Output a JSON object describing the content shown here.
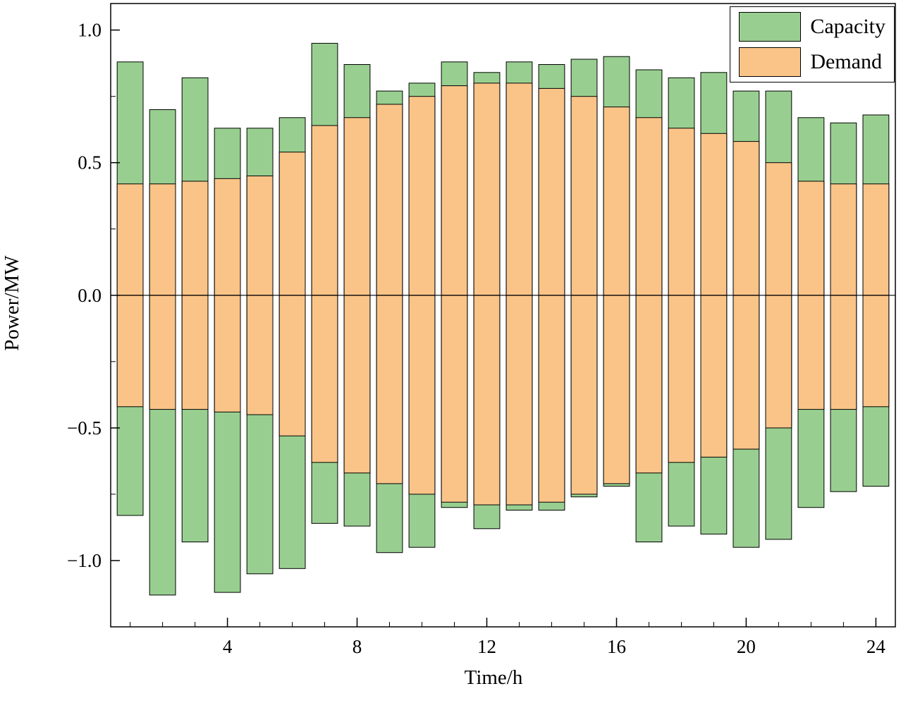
{
  "chart_data": {
    "type": "bar",
    "title": "",
    "xlabel": "Time/h",
    "ylabel": "Power/MW",
    "x": [
      1,
      2,
      3,
      4,
      5,
      6,
      7,
      8,
      9,
      10,
      11,
      12,
      13,
      14,
      15,
      16,
      17,
      18,
      19,
      20,
      21,
      22,
      23,
      24
    ],
    "series": [
      {
        "name": "Capacity",
        "color": "#98cf90",
        "positive": [
          0.88,
          0.7,
          0.82,
          0.63,
          0.63,
          0.67,
          0.95,
          0.87,
          0.77,
          0.8,
          0.88,
          0.84,
          0.88,
          0.87,
          0.89,
          0.9,
          0.85,
          0.82,
          0.84,
          0.77,
          0.77,
          0.67,
          0.65,
          0.68
        ],
        "negative": [
          -0.83,
          -1.13,
          -0.93,
          -1.12,
          -1.05,
          -1.03,
          -0.86,
          -0.87,
          -0.97,
          -0.95,
          -0.8,
          -0.88,
          -0.81,
          -0.81,
          -0.76,
          -0.72,
          -0.93,
          -0.87,
          -0.9,
          -0.95,
          -0.92,
          -0.8,
          -0.74,
          -0.72
        ]
      },
      {
        "name": "Demand",
        "color": "#fac488",
        "positive": [
          0.42,
          0.42,
          0.43,
          0.44,
          0.45,
          0.54,
          0.64,
          0.67,
          0.72,
          0.75,
          0.79,
          0.8,
          0.8,
          0.78,
          0.75,
          0.71,
          0.67,
          0.63,
          0.61,
          0.58,
          0.5,
          0.43,
          0.42,
          0.42
        ],
        "negative": [
          -0.42,
          -0.43,
          -0.43,
          -0.44,
          -0.45,
          -0.53,
          -0.63,
          -0.67,
          -0.71,
          -0.75,
          -0.78,
          -0.79,
          -0.79,
          -0.78,
          -0.75,
          -0.71,
          -0.67,
          -0.63,
          -0.61,
          -0.58,
          -0.5,
          -0.43,
          -0.43,
          -0.42
        ]
      }
    ],
    "xlim": [
      0.4,
      24.6
    ],
    "ylim": [
      -1.25,
      1.1
    ],
    "bar_width": 0.8,
    "xticks": [
      4,
      8,
      12,
      16,
      20,
      24
    ],
    "xtick_labels": [
      "4",
      "8",
      "12",
      "16",
      "20",
      "24"
    ],
    "yticks": [
      1.0,
      0.5,
      0.0,
      -0.5,
      -1.0
    ],
    "ytick_labels": [
      "1.0",
      "0.5",
      "0.0",
      "−0.5",
      "−1.0"
    ],
    "yticks_minor": [
      0.75,
      0.25,
      -0.25,
      -0.75
    ],
    "edge_color": "#000000",
    "legend": {
      "position": "top-right",
      "entries": [
        "Capacity",
        "Demand"
      ]
    }
  }
}
